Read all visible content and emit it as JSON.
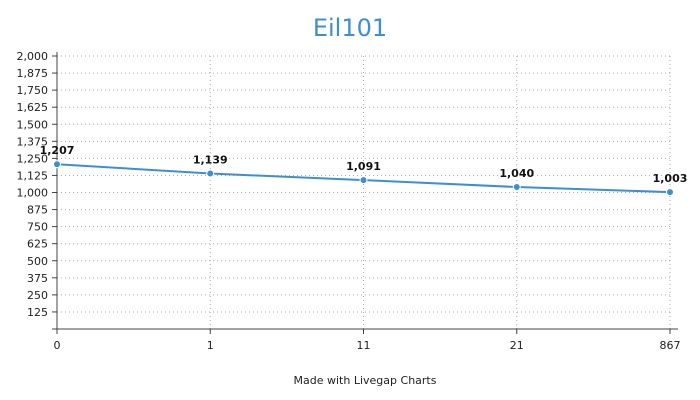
{
  "chart_data": {
    "type": "line",
    "title": "Eil101",
    "xlabel": "",
    "ylabel": "",
    "categories": [
      "0",
      "1",
      "11",
      "21",
      "867"
    ],
    "series": [
      {
        "values": [
          1207,
          1139,
          1091,
          1040,
          1003
        ],
        "labels": [
          "1,207",
          "1,139",
          "1,091",
          "1,040",
          "1,003"
        ],
        "color": "#3d8fd1"
      }
    ],
    "ylim": [
      0,
      2000
    ],
    "yticks": [
      "2,000",
      "1,875",
      "1,750",
      "1,625",
      "1,500",
      "1,375",
      "1,250",
      "1,125",
      "1,000",
      "875",
      "750",
      "625",
      "500",
      "375",
      "250",
      "125"
    ],
    "ytick_values": [
      2000,
      1875,
      1750,
      1625,
      1500,
      1375,
      1250,
      1125,
      1000,
      875,
      750,
      625,
      500,
      375,
      250,
      125
    ],
    "grid": true,
    "grid_color": "#aaaaaa",
    "credit": "Made with Livegap Charts"
  }
}
